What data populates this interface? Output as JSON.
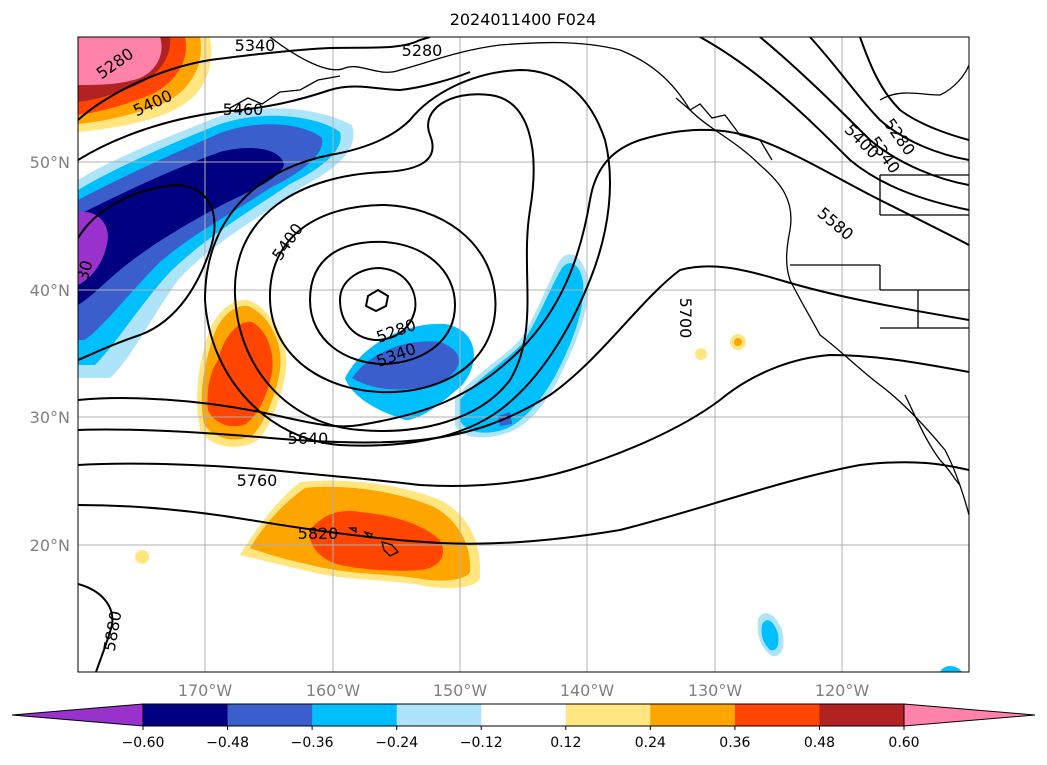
{
  "title": "2024011400 F024",
  "map": {
    "lat_labels": [
      "50°N",
      "40°N",
      "30°N",
      "20°N"
    ],
    "lon_labels": [
      "170°W",
      "160°W",
      "150°W",
      "140°W",
      "130°W",
      "120°W"
    ],
    "height_contour_labels": [
      "5340",
      "5280",
      "5280",
      "5400",
      "5460",
      "5400",
      "5280",
      "5340",
      "5280",
      "5340",
      "5400",
      "5580",
      "5700",
      "5640",
      "5760",
      "5820",
      "5880",
      "30"
    ],
    "colors": {
      "background": "#ffffff",
      "contour": "#000000",
      "grid": "#b0b0b0",
      "tick_label": "#808080"
    }
  },
  "colorbar": {
    "tick_labels": [
      "−0.60",
      "−0.48",
      "−0.36",
      "−0.24",
      "−0.12",
      "0.12",
      "0.24",
      "0.36",
      "0.48",
      "0.60"
    ],
    "colors": [
      "#9932cc",
      "#000080",
      "#3a5fcd",
      "#00bfff",
      "#aee4fa",
      "#ffffff",
      "#ffe680",
      "#ffa500",
      "#ff4500",
      "#b22222",
      "#ff82ab"
    ]
  }
}
